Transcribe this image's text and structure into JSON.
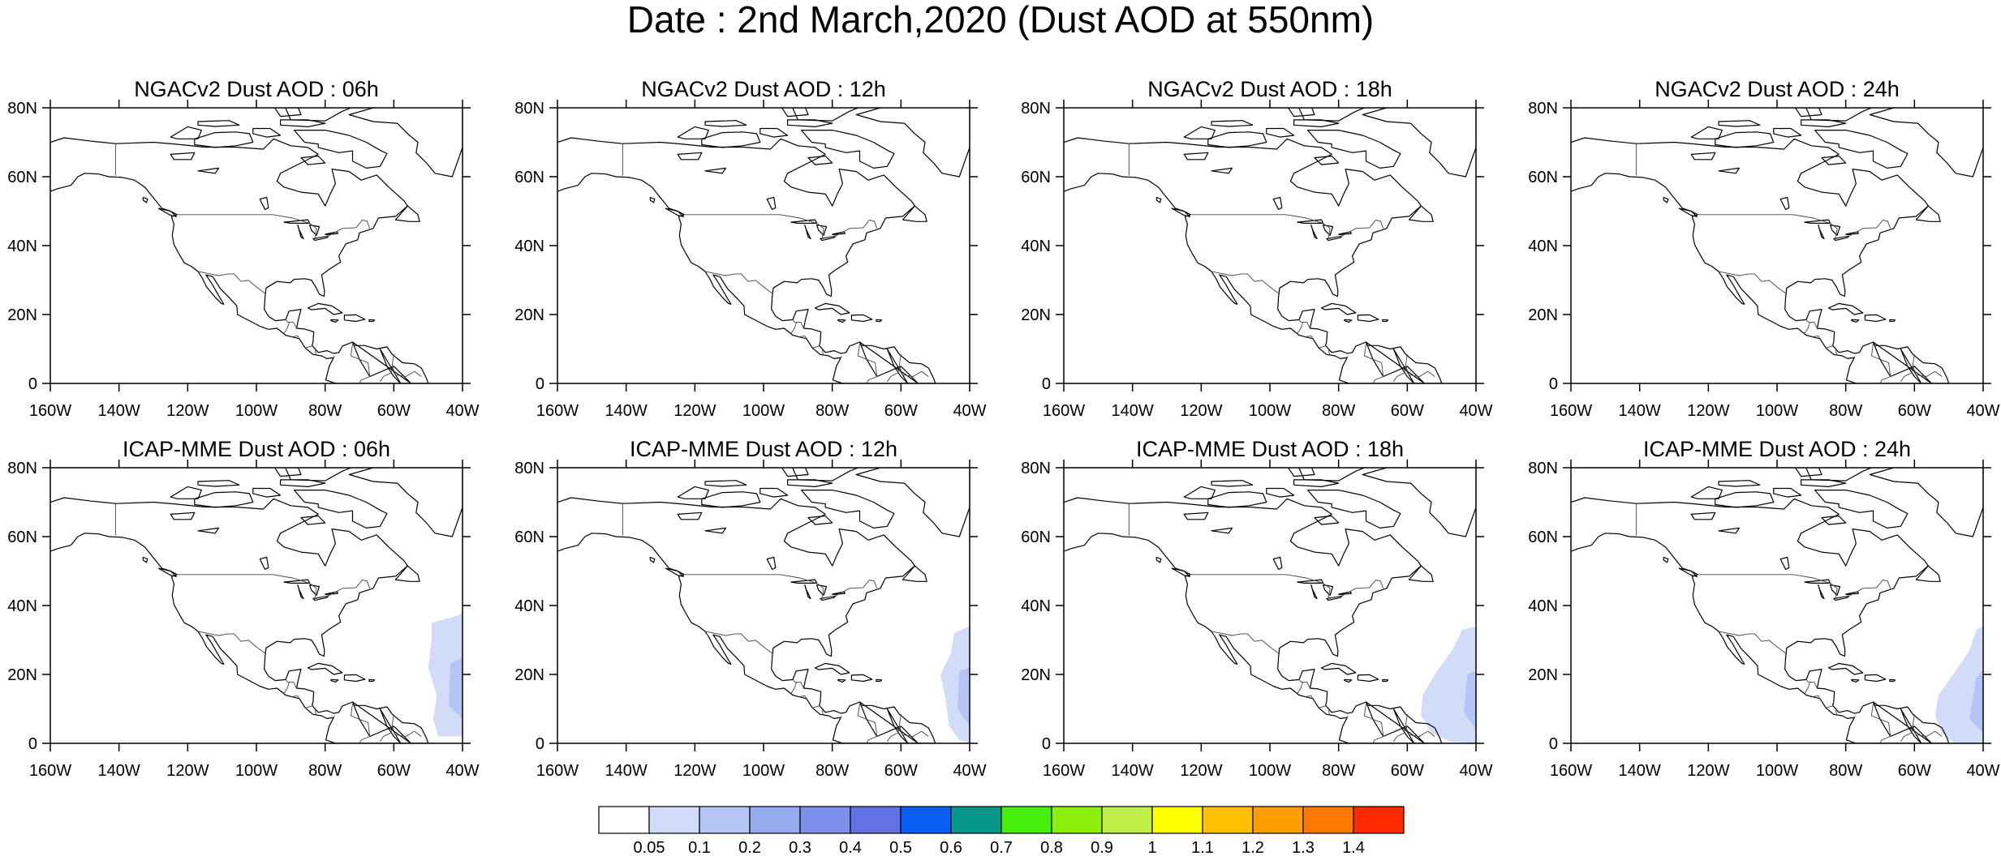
{
  "title": "Date : 2nd March,2020 (Dust AOD at 550nm)",
  "axis": {
    "lon_ticks": [
      "160W",
      "140W",
      "120W",
      "100W",
      "80W",
      "60W",
      "40W"
    ],
    "lat_ticks": [
      "80N",
      "60N",
      "40N",
      "20N",
      "0"
    ],
    "lon_range": [
      -160,
      -40
    ],
    "lat_range": [
      0,
      80
    ]
  },
  "panels": [
    {
      "title": "NGACv2 Dust AOD : 06h",
      "plume": null
    },
    {
      "title": "NGACv2 Dust AOD : 12h",
      "plume": null
    },
    {
      "title": "NGACv2 Dust AOD : 18h",
      "plume": null
    },
    {
      "title": "NGACv2 Dust AOD : 24h",
      "plume": null
    },
    {
      "title": "ICAP-MME Dust AOD : 06h",
      "plume": {
        "level": "0.05-0.1",
        "strong_level": "0.1-0.2"
      }
    },
    {
      "title": "ICAP-MME Dust AOD : 12h",
      "plume": {
        "level": "0.05-0.1",
        "strong_level": "0.1-0.2"
      }
    },
    {
      "title": "ICAP-MME Dust AOD : 18h",
      "plume": {
        "level": "0.05-0.1",
        "strong_level": "0.1-0.2"
      }
    },
    {
      "title": "ICAP-MME Dust AOD : 24h",
      "plume": {
        "level": "0.05-0.1",
        "strong_level": "0.1-0.2"
      }
    }
  ],
  "colorbar": {
    "labels": [
      "0.05",
      "0.1",
      "0.2",
      "0.3",
      "0.4",
      "0.5",
      "0.6",
      "0.7",
      "0.8",
      "0.9",
      "1",
      "1.1",
      "1.2",
      "1.3",
      "1.4"
    ],
    "colors": [
      "#ffffff",
      "#d2dcf8",
      "#b4c4f4",
      "#96aaf0",
      "#7d91ec",
      "#6470e6",
      "#0a5ef4",
      "#06968c",
      "#46f00a",
      "#8cf00a",
      "#bef046",
      "#ffff00",
      "#ffc000",
      "#ff9e00",
      "#ff7800",
      "#ff2a00"
    ]
  }
}
